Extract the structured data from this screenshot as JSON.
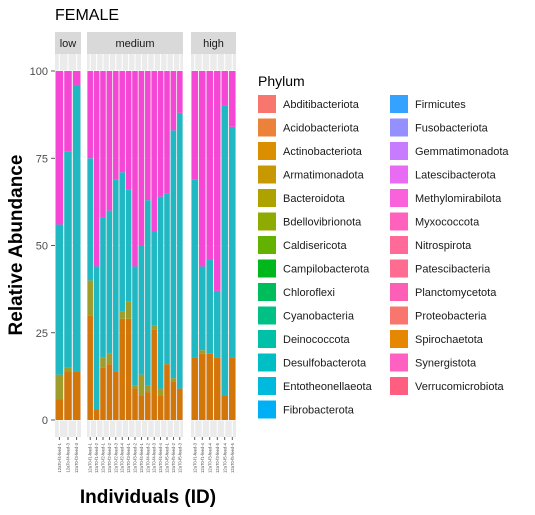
{
  "chart_data": {
    "type": "bar",
    "stacked": true,
    "title": "FEMALE",
    "xlabel": "Individuals (ID)",
    "ylabel": "Relative Abundance",
    "ylim": [
      0,
      100
    ],
    "yticks": [
      0,
      25,
      50,
      75,
      100
    ],
    "legend": {
      "title": "Phylum",
      "placement": "right",
      "columns": 2
    },
    "phyla": [
      {
        "name": "Abditibacteriota",
        "color": "#F8766D"
      },
      {
        "name": "Acidobacteriota",
        "color": "#EC8239"
      },
      {
        "name": "Actinobacteriota",
        "color": "#DB8E00"
      },
      {
        "name": "Armatimonadota",
        "color": "#C79800"
      },
      {
        "name": "Bacteroidota",
        "color": "#AEA200"
      },
      {
        "name": "Bdellovibrionota",
        "color": "#8FAA00"
      },
      {
        "name": "Caldisericota",
        "color": "#64B200"
      },
      {
        "name": "Campilobacterota",
        "color": "#00B81B"
      },
      {
        "name": "Chloroflexi",
        "color": "#00BD5C"
      },
      {
        "name": "Cyanobacteria",
        "color": "#00C085"
      },
      {
        "name": "Deinococcota",
        "color": "#00C1A7"
      },
      {
        "name": "Desulfobacterota",
        "color": "#00BFC4"
      },
      {
        "name": "Entotheonellaeota",
        "color": "#00BADE"
      },
      {
        "name": "Fibrobacterota",
        "color": "#00B0F6"
      },
      {
        "name": "Firmicutes",
        "color": "#35A2FF"
      },
      {
        "name": "Fusobacteriota",
        "color": "#9590FF"
      },
      {
        "name": "Gemmatimonadota",
        "color": "#C77CFF"
      },
      {
        "name": "Latescibacterota",
        "color": "#E76BF3"
      },
      {
        "name": "Methylomirabilota",
        "color": "#FA62DB"
      },
      {
        "name": "Myxococcota",
        "color": "#FF62BC"
      },
      {
        "name": "Nitrospirota",
        "color": "#FF6A98"
      },
      {
        "name": "Patescibacteria",
        "color": "#FF6C91"
      },
      {
        "name": "Planctomycetota",
        "color": "#FC5FB5"
      },
      {
        "name": "Proteobacteria",
        "color": "#F8766D"
      },
      {
        "name": "Spirochaetota",
        "color": "#E58700"
      },
      {
        "name": "Synergistota",
        "color": "#FF61C3"
      },
      {
        "name": "Verrucomicrobiota",
        "color": "#FF5E80"
      }
    ],
    "panels": [
      {
        "label": "low",
        "samples": [
          {
            "id": "12aTo-f4-feed-1",
            "proteobacteria": 44,
            "firmicutes": 43,
            "bacteroidota": 7,
            "actinobacteriota": 6
          },
          {
            "id": "12aTo-f4-feed-3",
            "proteobacteria": 23,
            "firmicutes": 62,
            "bacteroidota": 1,
            "actinobacteriota": 14
          },
          {
            "id": "12aT0-f3-feed-3",
            "proteobacteria": 4,
            "firmicutes": 82,
            "bacteroidota": 0,
            "actinobacteriota": 14
          }
        ]
      },
      {
        "label": "medium",
        "samples": [
          {
            "id": "12aT0-f1-feed-1",
            "proteobacteria": 25,
            "firmicutes": 35,
            "bacteroidota": 10,
            "actinobacteriota": 30
          },
          {
            "id": "12aT0-f1-feed-2",
            "proteobacteria": 56,
            "firmicutes": 41,
            "bacteroidota": 0,
            "actinobacteriota": 3
          },
          {
            "id": "12aT0-f2-feed-1",
            "proteobacteria": 42,
            "firmicutes": 40,
            "bacteroidota": 3,
            "actinobacteriota": 15
          },
          {
            "id": "12aT0-f2-feed-2",
            "proteobacteria": 40,
            "firmicutes": 41,
            "bacteroidota": 3,
            "actinobacteriota": 16
          },
          {
            "id": "12aT0-f2-feed-3",
            "proteobacteria": 31,
            "firmicutes": 55,
            "bacteroidota": 0,
            "actinobacteriota": 14
          },
          {
            "id": "12aT0-f2-feed-4",
            "proteobacteria": 29,
            "firmicutes": 40,
            "bacteroidota": 2,
            "actinobacteriota": 29
          },
          {
            "id": "12aT0-f3-feed-1",
            "proteobacteria": 34,
            "firmicutes": 32,
            "bacteroidota": 5,
            "actinobacteriota": 29
          },
          {
            "id": "12aT0-f3-feed-2",
            "proteobacteria": 56,
            "firmicutes": 34,
            "bacteroidota": 1,
            "actinobacteriota": 9
          },
          {
            "id": "12aT0-f4-feed-1",
            "proteobacteria": 50,
            "firmicutes": 37,
            "bacteroidota": 6,
            "actinobacteriota": 7
          },
          {
            "id": "12aT0-f4-feed-2",
            "proteobacteria": 37,
            "firmicutes": 53,
            "bacteroidota": 2,
            "actinobacteriota": 8
          },
          {
            "id": "12aT0-f4-feed-3",
            "proteobacteria": 46,
            "firmicutes": 27,
            "bacteroidota": 1,
            "actinobacteriota": 26
          },
          {
            "id": "12aT0-f4-feed-4",
            "proteobacteria": 36,
            "firmicutes": 55,
            "bacteroidota": 2,
            "actinobacteriota": 7
          },
          {
            "id": "12aT0-f5-feed-1",
            "proteobacteria": 35,
            "firmicutes": 49,
            "bacteroidota": 0,
            "actinobacteriota": 16
          },
          {
            "id": "12aT0-f5-feed-2",
            "proteobacteria": 17,
            "firmicutes": 71,
            "bacteroidota": 1,
            "actinobacteriota": 11
          },
          {
            "id": "12aT0-f5-feed-3",
            "proteobacteria": 12,
            "firmicutes": 79,
            "bacteroidota": 0,
            "actinobacteriota": 9
          }
        ]
      },
      {
        "label": "high",
        "samples": [
          {
            "id": "12aT0-f1-feed-3",
            "proteobacteria": 31,
            "firmicutes": 51,
            "bacteroidota": 0,
            "actinobacteriota": 18
          },
          {
            "id": "12aT0-f1-feed-4",
            "proteobacteria": 56,
            "firmicutes": 24,
            "bacteroidota": 1,
            "actinobacteriota": 19
          },
          {
            "id": "12aT0-f3-feed-4",
            "proteobacteria": 54,
            "firmicutes": 27,
            "bacteroidota": 0,
            "actinobacteriota": 19
          },
          {
            "id": "12aT0-f3-feed-5",
            "proteobacteria": 63,
            "firmicutes": 19,
            "bacteroidota": 0,
            "actinobacteriota": 18
          },
          {
            "id": "12aT0-f5-feed-4",
            "proteobacteria": 10,
            "firmicutes": 83,
            "bacteroidota": 0,
            "actinobacteriota": 7
          },
          {
            "id": "12aT0-f5-feed-5",
            "proteobacteria": 16,
            "firmicutes": 66,
            "bacteroidota": 0,
            "actinobacteriota": 18
          }
        ]
      }
    ]
  }
}
